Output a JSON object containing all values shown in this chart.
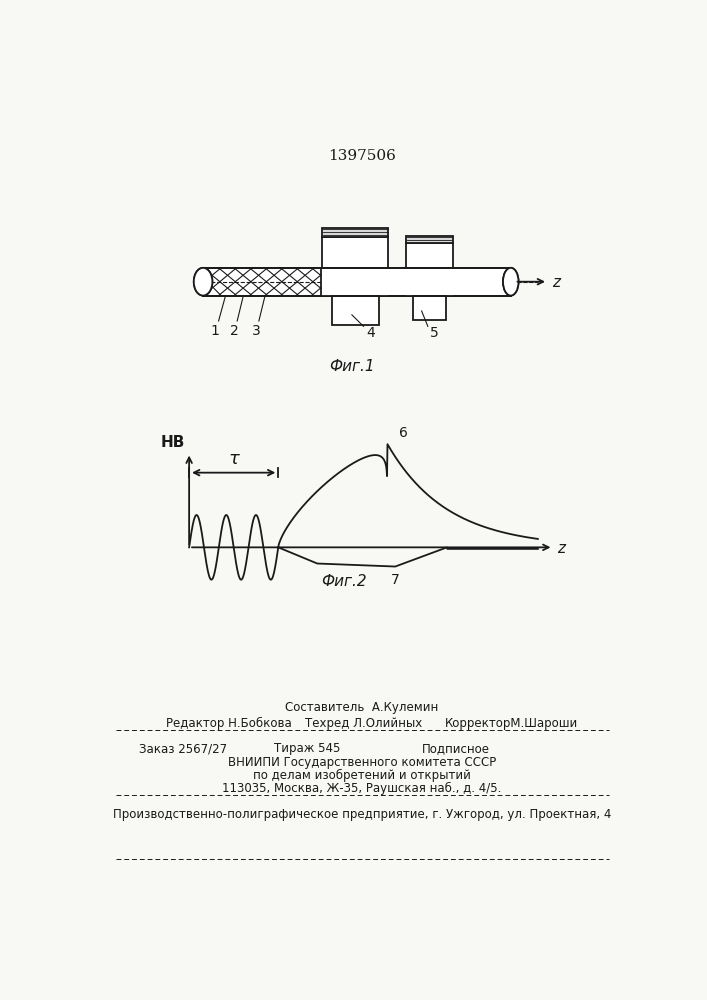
{
  "patent_number": "1397506",
  "fig1_caption": "Фиг.1",
  "fig2_caption": "Фиг.2",
  "z_label": "z",
  "hb_label": "НВ",
  "tau_label": "τ",
  "label_1": "1",
  "label_2": "2",
  "label_3": "3",
  "label_4": "4",
  "label_5": "5",
  "label_6": "6",
  "label_7": "7",
  "footer_line1": "Составитель  А.Кулемин",
  "footer_line2a": "Редактор Н.Бобкова",
  "footer_line2b": "Техред Л.Олийных",
  "footer_line2c": "КорректорМ.Шароши",
  "footer_line3a": "Заказ 2567/27",
  "footer_line3b": "Тираж 545",
  "footer_line3c": "Подписное",
  "footer_line4": "ВНИИПИ Государственного комитета СССР",
  "footer_line5": "по делам изобретений и открытий",
  "footer_line6": "113035, Москва, Ж-35, Раушская наб., д. 4/5.",
  "footer_line7": "Производственно-полиграфическое предприятие, г. Ужгород, ул. Проектная, 4",
  "bg_color": "#f8f8f4",
  "line_color": "#1a1a1a"
}
